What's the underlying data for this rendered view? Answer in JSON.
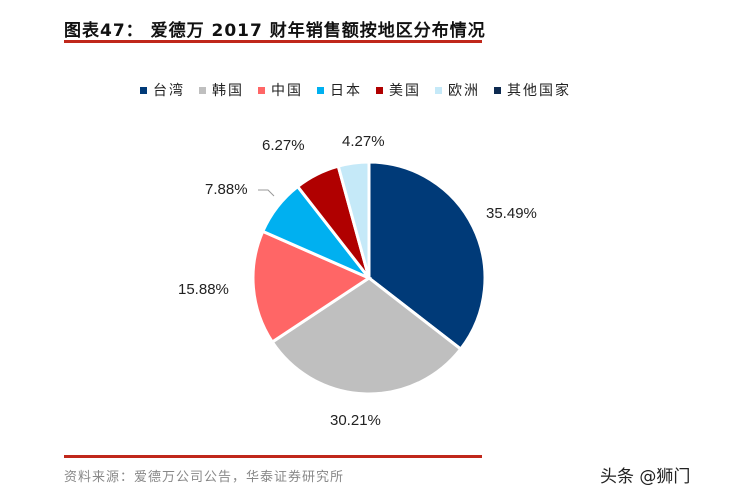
{
  "title": "图表47：  爱德万 2017 财年销售额按地区分布情况",
  "source": "资料来源：爱德万公司公告，华泰证券研究所",
  "watermark": "头条 @狮门",
  "colors": {
    "accent_rule": "#c0281b"
  },
  "legend": [
    {
      "label": "台湾",
      "color": "#003a78"
    },
    {
      "label": "韩国",
      "color": "#bfbfbf"
    },
    {
      "label": "中国",
      "color": "#ff6666"
    },
    {
      "label": "日本",
      "color": "#00b0f0"
    },
    {
      "label": "美国",
      "color": "#b00000"
    },
    {
      "label": "欧洲",
      "color": "#c5e9f8"
    },
    {
      "label": "其他国家",
      "color": "#0d2a50"
    }
  ],
  "labels": {
    "taiwan": "35.49%",
    "korea": "30.21%",
    "china": "15.88%",
    "japan": "7.88%",
    "usa": "6.27%",
    "europe": "4.27%"
  },
  "chart_data": {
    "type": "pie",
    "title": "爱德万 2017 财年销售额按地区分布情况",
    "categories": [
      "台湾",
      "韩国",
      "中国",
      "日本",
      "美国",
      "欧洲",
      "其他国家"
    ],
    "values": [
      35.49,
      30.21,
      15.88,
      7.88,
      6.27,
      4.27,
      0
    ],
    "unit": "%",
    "legend_position": "top",
    "start_angle": "12 o'clock, clockwise"
  }
}
